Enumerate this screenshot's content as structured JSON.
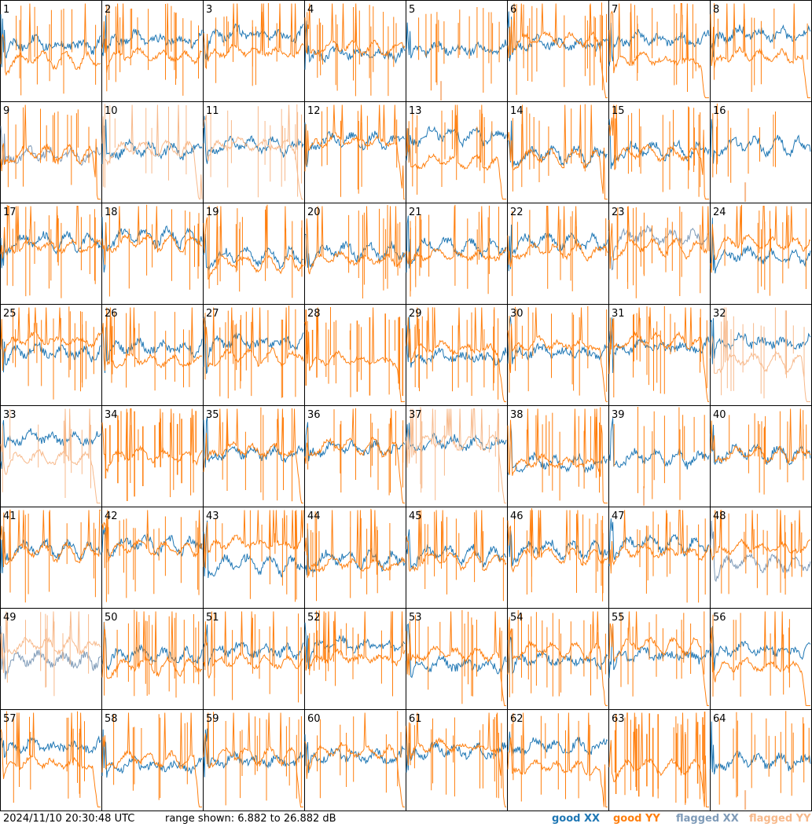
{
  "chart_data": {
    "type": "line",
    "layout": "8x8 grid of small spectra panels",
    "y_range_db": [
      6.882,
      26.882
    ],
    "panels": [
      "1",
      "2",
      "3",
      "4",
      "5",
      "6",
      "7",
      "8",
      "9",
      "10",
      "11",
      "12",
      "13",
      "14",
      "15",
      "16",
      "17",
      "18",
      "19",
      "20",
      "21",
      "22",
      "23",
      "24",
      "25",
      "26",
      "27",
      "28",
      "29",
      "30",
      "31",
      "32",
      "33",
      "34",
      "35",
      "36",
      "37",
      "38",
      "39",
      "40",
      "41",
      "42",
      "43",
      "44",
      "45",
      "46",
      "47",
      "48",
      "49",
      "50",
      "51",
      "52",
      "53",
      "54",
      "55",
      "56",
      "57",
      "58",
      "59",
      "60",
      "61",
      "62",
      "63",
      "64"
    ],
    "panel_status": {
      "flagged_xx": [
        "9",
        "23",
        "48",
        "49"
      ],
      "flagged_yy": [
        "10",
        "11",
        "32",
        "33",
        "37",
        "49"
      ],
      "dead_xx": [
        "28",
        "34",
        "63"
      ],
      "dead_yy": [
        "5",
        "16",
        "39",
        "64"
      ]
    },
    "legend": [
      {
        "label": "good XX",
        "color": "#1f77b4"
      },
      {
        "label": "good YY",
        "color": "#ff7f0e"
      },
      {
        "label": "flagged XX",
        "color": "#7f9bb8"
      },
      {
        "label": "flagged YY",
        "color": "#f7b98b"
      }
    ]
  },
  "footer": {
    "timestamp": "2024/11/10 20:30:48 UTC",
    "range_text": "range shown: 6.882 to 26.882 dB"
  }
}
